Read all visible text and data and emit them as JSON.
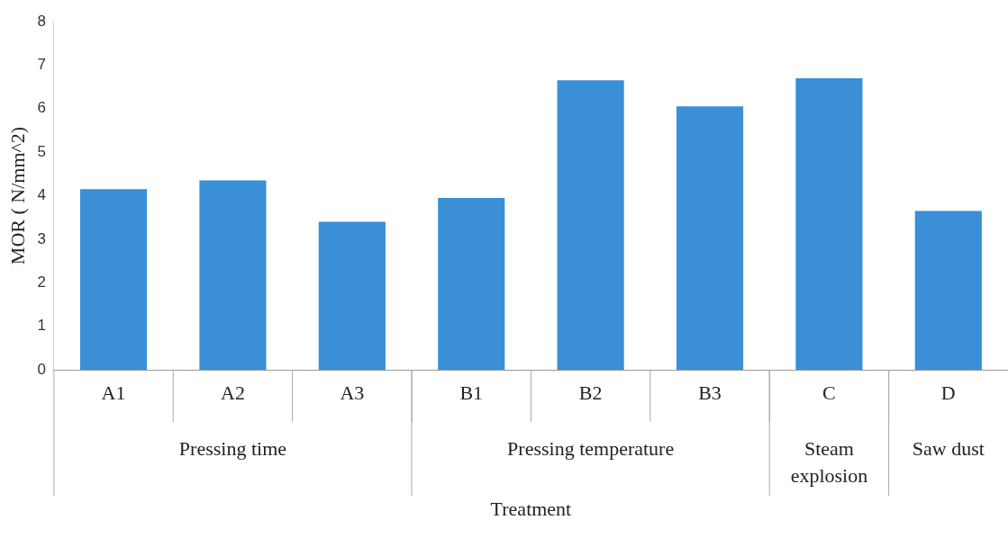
{
  "chart_data": {
    "type": "bar",
    "xlabel": "Treatment",
    "ylabel": "MOR ( N/mm^2)",
    "categories": [
      "A1",
      "A2",
      "A3",
      "B1",
      "B2",
      "B3",
      "C",
      "D"
    ],
    "values": [
      4.15,
      4.35,
      3.4,
      3.95,
      6.65,
      6.05,
      6.7,
      3.65
    ],
    "color": "#3a8fd6",
    "ylim": [
      0,
      8
    ],
    "yticks": [
      0,
      1,
      2,
      3,
      4,
      5,
      6,
      7,
      8
    ],
    "grid": false,
    "legend": false,
    "annotations": [
      "Pressing time",
      "Pressing temperature",
      "Steam explosion",
      "Saw dust"
    ]
  }
}
